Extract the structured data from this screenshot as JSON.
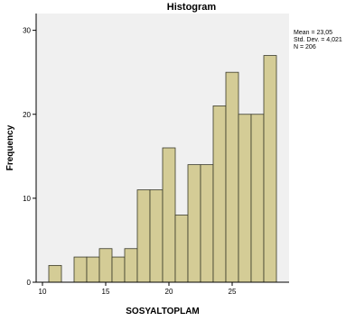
{
  "chart_data": {
    "type": "bar",
    "title": "Histogram",
    "xlabel": "SOSYALTOPLAM",
    "ylabel": "Frequency",
    "bin_width": 1,
    "bin_start": 10,
    "x_bin_centers": [
      11,
      12,
      13,
      14,
      15,
      16,
      17,
      18,
      19,
      20,
      21,
      22,
      23,
      24,
      25,
      26,
      27,
      28
    ],
    "values": [
      2,
      0,
      3,
      3,
      4,
      3,
      4,
      11,
      11,
      16,
      8,
      14,
      14,
      21,
      25,
      20,
      20,
      27
    ],
    "xlim": [
      9.5,
      29.5
    ],
    "ylim": [
      0,
      32
    ],
    "xticks": [
      10,
      15,
      20,
      25
    ],
    "yticks": [
      0,
      10,
      20,
      30
    ],
    "grid": false,
    "stats": [
      "Mean = 23,05",
      "Std. Dev. = 4,021",
      "N = 206"
    ],
    "colors": {
      "plot_background": "#f0f0f0",
      "bar_fill": "#d4cc96",
      "bar_stroke": "#3a3a2a",
      "axis": "#000000"
    }
  }
}
